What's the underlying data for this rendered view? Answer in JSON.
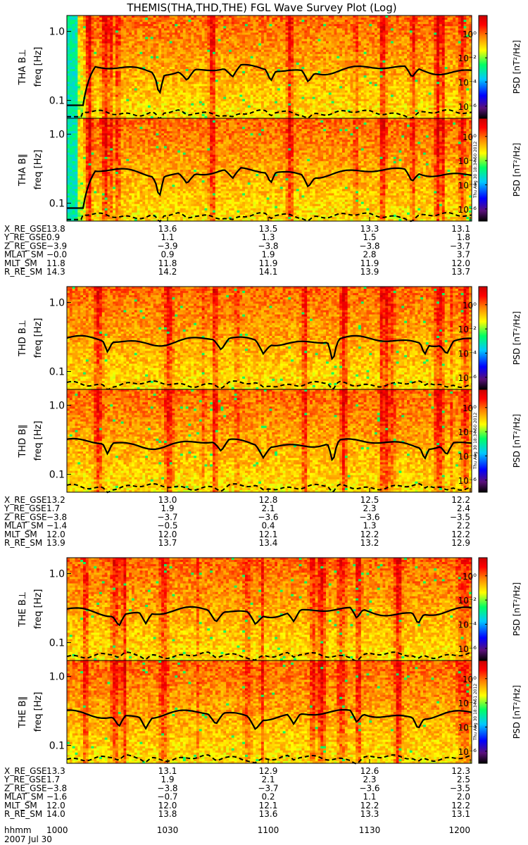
{
  "title": "THEMIS(THA,THD,THE) FGL Wave Survey Plot (Log)",
  "colors": {
    "border": "#000000",
    "background": "#ffffff"
  },
  "colorbar": {
    "stops": [
      "#000000",
      "#5a0f7a",
      "#0000ff",
      "#00c8ff",
      "#00ff64",
      "#ffff00",
      "#ff8000",
      "#ff0000",
      "#c80000"
    ],
    "label": "PSD [nT²/Hz]",
    "tick_labels": [
      "10⁰",
      "10⁻²",
      "10⁻⁴",
      "10⁻⁶"
    ],
    "log_range": [
      -7,
      1.5
    ]
  },
  "ylabel": "freq [Hz]",
  "time_labels": [
    "1000",
    "1030",
    "1100",
    "1130",
    "1200"
  ],
  "date_label": "2007 Jul 30",
  "hhmm_label": "hhmm",
  "timestamps": [
    "Thu Aug 30 18:34:50 2012",
    "Thu Aug 30 18:34:50 2012",
    "Thu Aug 30 18:34:51 2012"
  ],
  "chart_data": [
    {
      "type": "heatmap",
      "probe": "THA",
      "panels": [
        {
          "name": "THA B⊥",
          "ylabel": "THA B⊥",
          "y_ticks": [
            "1.0",
            "0.1"
          ],
          "yscale": "log",
          "ylim": [
            0.055,
            1.7
          ]
        },
        {
          "name": "THA B∥",
          "ylabel": "THA B∥",
          "y_ticks": [
            "1.0",
            "0.1"
          ],
          "yscale": "log",
          "ylim": [
            0.055,
            1.7
          ]
        }
      ],
      "ephemeris": [
        {
          "name": "X_RE_GSE",
          "values": [
            "13.8",
            "13.6",
            "13.5",
            "13.3",
            "13.1"
          ]
        },
        {
          "name": "Y_RE_GSE",
          "values": [
            "0.9",
            "1.1",
            "1.3",
            "1.5",
            "1.8"
          ]
        },
        {
          "name": "Z_RE_GSE",
          "values": [
            "−3.9",
            "−3.9",
            "−3.8",
            "−3.8",
            "−3.7"
          ]
        },
        {
          "name": "MLAT_SM",
          "values": [
            "−0.0",
            "0.9",
            "1.9",
            "2.8",
            "3.7"
          ]
        },
        {
          "name": "MLT_SM",
          "values": [
            "11.8",
            "11.8",
            "11.9",
            "11.9",
            "12.0"
          ]
        },
        {
          "name": "R_RE_SM",
          "values": [
            "14.3",
            "14.2",
            "14.1",
            "13.9",
            "13.7"
          ]
        }
      ]
    },
    {
      "type": "heatmap",
      "probe": "THD",
      "panels": [
        {
          "name": "THD B⊥",
          "ylabel": "THD B⊥",
          "y_ticks": [
            "1.0",
            "0.1"
          ],
          "yscale": "log",
          "ylim": [
            0.055,
            1.7
          ]
        },
        {
          "name": "THD B∥",
          "ylabel": "THD B∥",
          "y_ticks": [
            "1.0",
            "0.1"
          ],
          "yscale": "log",
          "ylim": [
            0.055,
            1.7
          ]
        }
      ],
      "ephemeris": [
        {
          "name": "X_RE_GSE",
          "values": [
            "13.2",
            "13.0",
            "12.8",
            "12.5",
            "12.2"
          ]
        },
        {
          "name": "Y_RE_GSE",
          "values": [
            "1.7",
            "1.9",
            "2.1",
            "2.3",
            "2.4"
          ]
        },
        {
          "name": "Z_RE_GSE",
          "values": [
            "−3.8",
            "−3.7",
            "−3.6",
            "−3.6",
            "−3.5"
          ]
        },
        {
          "name": "MLAT_SM",
          "values": [
            "−1.4",
            "−0.5",
            "0.4",
            "1.3",
            "2.2"
          ]
        },
        {
          "name": "MLT_SM",
          "values": [
            "12.0",
            "12.0",
            "12.1",
            "12.2",
            "12.2"
          ]
        },
        {
          "name": "R_RE_SM",
          "values": [
            "13.9",
            "13.7",
            "13.4",
            "13.2",
            "12.9"
          ]
        }
      ]
    },
    {
      "type": "heatmap",
      "probe": "THE",
      "panels": [
        {
          "name": "THE B⊥",
          "ylabel": "THE B⊥",
          "y_ticks": [
            "1.0",
            "0.1"
          ],
          "yscale": "log",
          "ylim": [
            0.055,
            1.7
          ]
        },
        {
          "name": "THE B∥",
          "ylabel": "THE B∥",
          "y_ticks": [
            "1.0",
            "0.1"
          ],
          "yscale": "log",
          "ylim": [
            0.055,
            1.7
          ]
        }
      ],
      "ephemeris": [
        {
          "name": "X_RE_GSE",
          "values": [
            "13.3",
            "13.1",
            "12.9",
            "12.6",
            "12.3"
          ]
        },
        {
          "name": "Y_RE_GSE",
          "values": [
            "1.7",
            "1.9",
            "2.1",
            "2.3",
            "2.5"
          ]
        },
        {
          "name": "Z_RE_GSE",
          "values": [
            "−3.8",
            "−3.8",
            "−3.7",
            "−3.6",
            "−3.5"
          ]
        },
        {
          "name": "MLAT_SM",
          "values": [
            "−1.6",
            "−0.7",
            "0.2",
            "1.1",
            "2.0"
          ]
        },
        {
          "name": "MLT_SM",
          "values": [
            "12.0",
            "12.0",
            "12.1",
            "12.2",
            "12.2"
          ]
        },
        {
          "name": "R_RE_SM",
          "values": [
            "14.0",
            "13.8",
            "13.6",
            "13.3",
            "13.1"
          ]
        }
      ]
    }
  ]
}
